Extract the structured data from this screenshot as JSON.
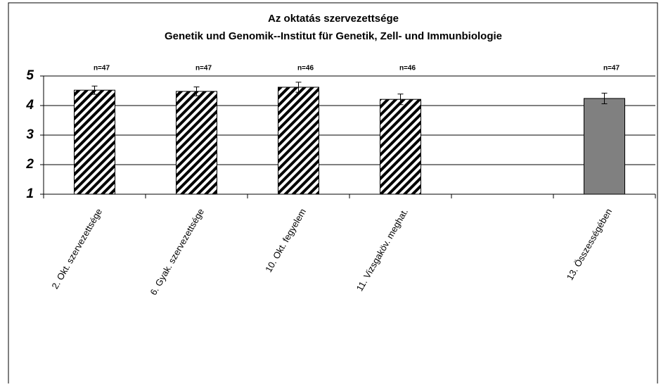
{
  "chart_data": {
    "type": "bar",
    "title": "Az oktatás szervezettsége",
    "subtitle": "Genetik und Genomik--Institut für Genetik, Zell- und Immunbiologie",
    "categories": [
      "2. Okt. szervezettsége",
      "6. Gyak. szervezettsége",
      "10. Okt. fegyelem",
      "11. Vizsgaköv. meghat.",
      null,
      "13. Összességében"
    ],
    "values": [
      4.52,
      4.48,
      4.62,
      4.21,
      null,
      4.24
    ],
    "errors": [
      0.14,
      0.15,
      0.17,
      0.18,
      null,
      0.18
    ],
    "annotations": [
      "n=47",
      "n=47",
      "n=46",
      "n=46",
      null,
      "n=47"
    ],
    "bar_styles": [
      "hatch",
      "hatch",
      "hatch",
      "hatch",
      null,
      "#808080"
    ],
    "ylim": [
      1,
      5
    ],
    "yticks": [
      1,
      2,
      3,
      4,
      5
    ],
    "grid": true
  }
}
